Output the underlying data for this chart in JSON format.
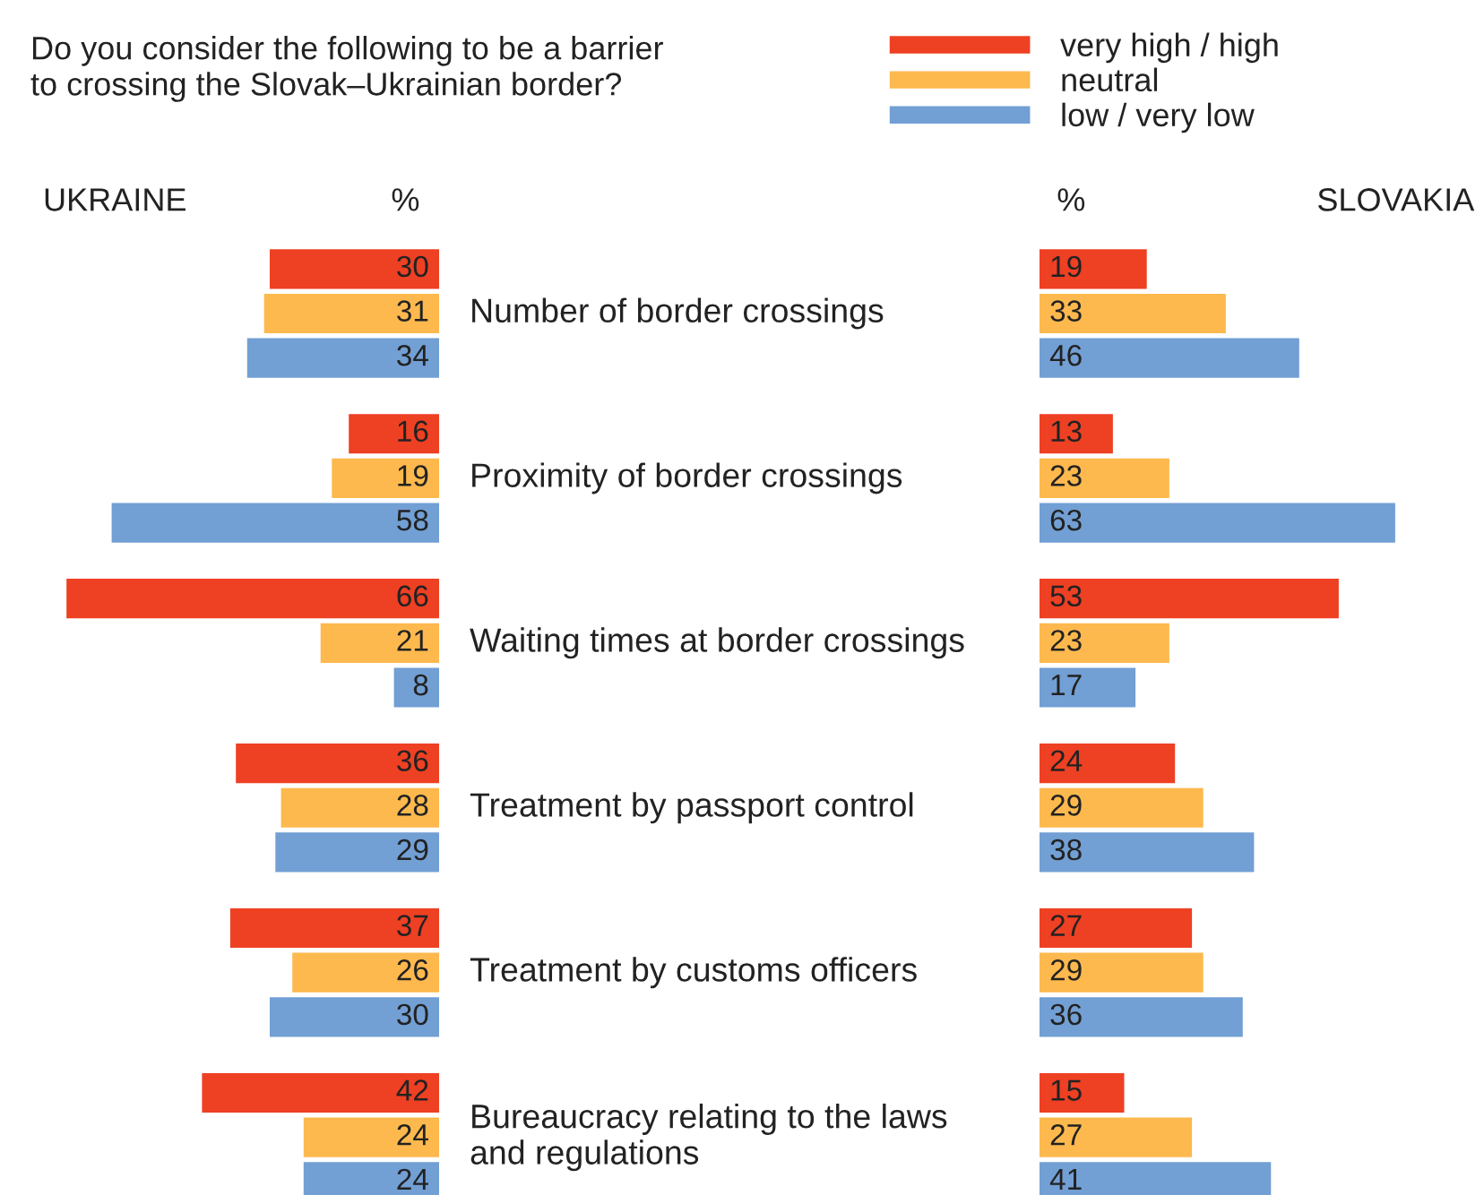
{
  "chart_data": [
    {
      "type": "bar",
      "orientation": "horizontal",
      "title": "UKRAINE",
      "xlabel": "%",
      "data_labels": true,
      "legend": "top",
      "tick_labels": false,
      "annotations": [
        "Do you consider the following to be a barrier\nto crossing the Slovak–Ukrainian border?"
      ],
      "categories": [
        "Number of border crossings",
        "Proximity of border crossings",
        "Waiting times at border crossings",
        "Treatment by passport control",
        "Treatment by customs officers",
        "Bureaucracy relating to the laws\nand regulations"
      ],
      "series": [
        {
          "name": "very high / high",
          "color": "#ee4023",
          "values": [
            30,
            16,
            66,
            36,
            37,
            42
          ]
        },
        {
          "name": "neutral",
          "color": "#fdb94e",
          "values": [
            31,
            19,
            21,
            28,
            26,
            24
          ]
        },
        {
          "name": "low / very low",
          "color": "#729fd4",
          "values": [
            34,
            58,
            8,
            29,
            30,
            24
          ]
        }
      ]
    },
    {
      "type": "bar",
      "orientation": "horizontal",
      "title": "SLOVAKIA",
      "xlabel": "%",
      "data_labels": true,
      "tick_labels": false,
      "categories": [
        null,
        null,
        null,
        null,
        null,
        null
      ],
      "series": [
        {
          "color": "#ee4023",
          "values": [
            19,
            13,
            53,
            24,
            27,
            15
          ]
        },
        {
          "color": "#fdb94e",
          "values": [
            33,
            23,
            23,
            29,
            29,
            27
          ]
        },
        {
          "color": "#729fd4",
          "values": [
            46,
            63,
            17,
            38,
            36,
            41
          ]
        }
      ]
    }
  ]
}
